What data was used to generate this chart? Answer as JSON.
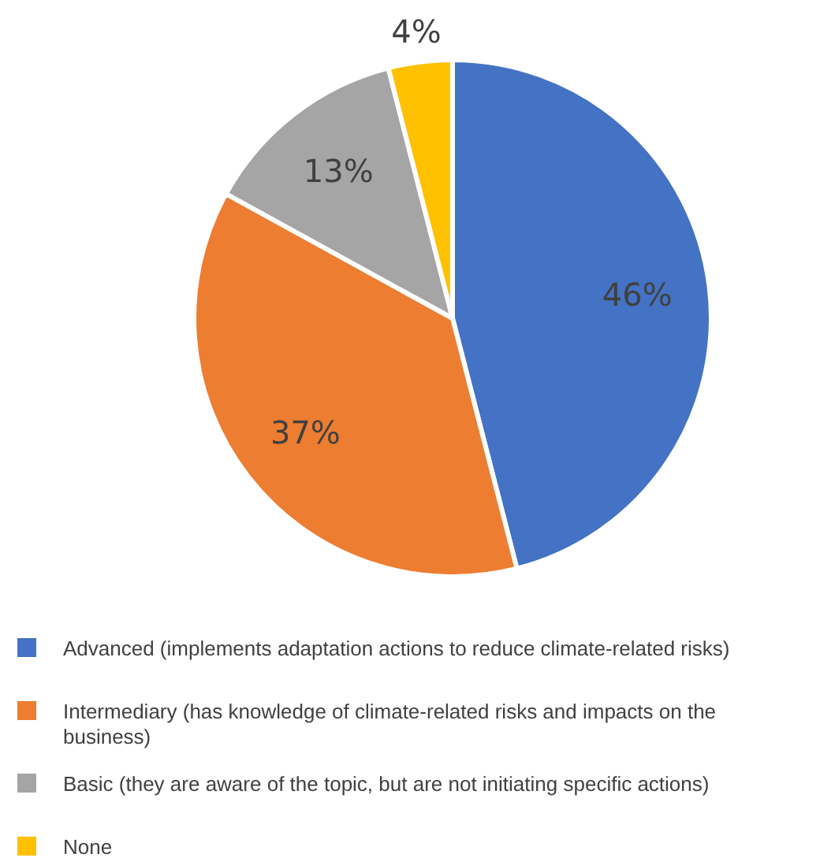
{
  "chart_data": {
    "type": "pie",
    "categories": [
      "Advanced (implements adaptation actions to reduce climate-related risks)",
      "Intermediary (has knowledge of climate-related risks and impacts on the business)",
      "Basic (they are aware of the topic, but are not initiating specific actions)",
      "None"
    ],
    "values": [
      46,
      37,
      13,
      4
    ],
    "colors": [
      "#4472c4",
      "#ed7d31",
      "#a5a5a5",
      "#ffc000"
    ],
    "value_labels": [
      "46%",
      "37%",
      "13%",
      "4%"
    ],
    "legend": "bottom"
  }
}
